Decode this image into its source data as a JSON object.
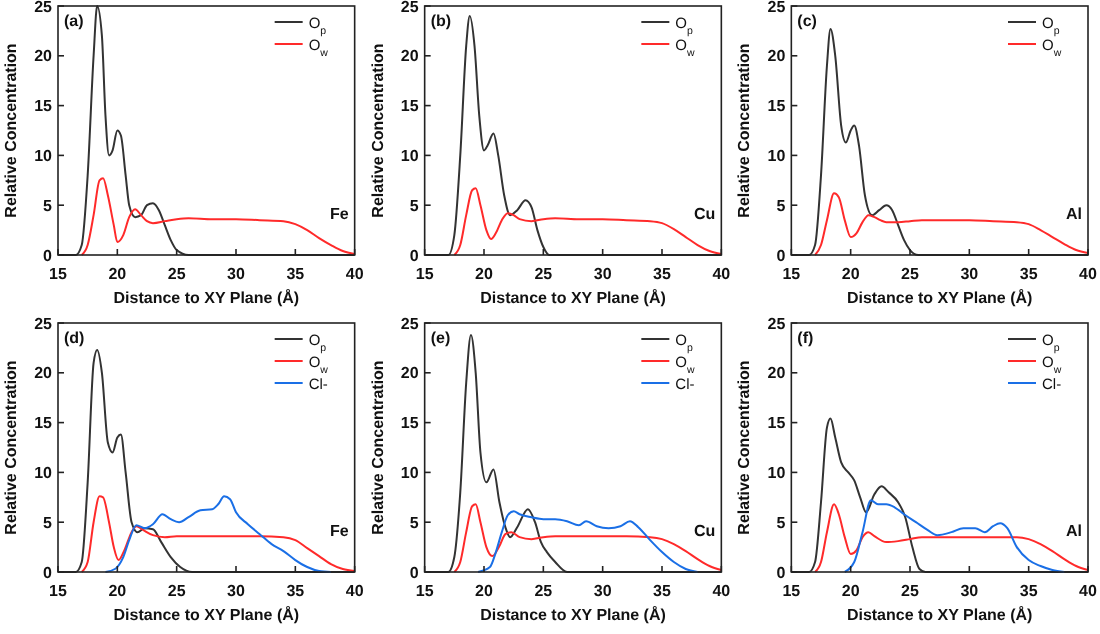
{
  "chart_data": [
    {
      "type": "line",
      "xlabel": "Distance to XY Plane (Å)",
      "ylabel": "Relative Concentration",
      "xlim": [
        15,
        40
      ],
      "ylim": [
        0,
        25
      ],
      "xticks": [
        15,
        20,
        25,
        30,
        35,
        40
      ],
      "yticks": [
        0,
        5,
        10,
        15,
        20,
        25
      ],
      "legend": "top right",
      "annotations": [
        "(a)",
        "Fe"
      ],
      "series": [
        {
          "name": "O$_{p}$",
          "color": "#333333",
          "x": [
            15,
            16.5,
            17,
            17.5,
            18,
            18.3,
            18.7,
            19,
            19.3,
            19.6,
            20,
            20.3,
            20.7,
            21,
            21.5,
            22,
            22.5,
            23,
            23.5,
            24,
            24.5,
            25,
            26,
            40
          ],
          "values": [
            0,
            0,
            1,
            8,
            20,
            25,
            22,
            14,
            10,
            10.5,
            12.5,
            12,
            8,
            5,
            3.8,
            4,
            5,
            5.2,
            4.5,
            3,
            1.5,
            0.5,
            0,
            0
          ]
        },
        {
          "name": "O$_{w}$",
          "color": "#ff2a2a",
          "x": [
            17,
            17.5,
            18,
            18.5,
            18.8,
            19.2,
            19.7,
            20,
            20.5,
            21,
            21.5,
            22,
            22.5,
            23,
            24,
            25,
            26,
            28,
            30,
            32,
            34,
            35,
            36,
            37,
            38,
            39,
            40
          ],
          "values": [
            0,
            1,
            4,
            7.5,
            7.7,
            6,
            3,
            1.3,
            2,
            3.8,
            4.6,
            4,
            3.4,
            3.2,
            3.4,
            3.6,
            3.7,
            3.6,
            3.6,
            3.5,
            3.4,
            3.1,
            2.5,
            1.7,
            1,
            0.4,
            0.1
          ]
        }
      ]
    },
    {
      "type": "line",
      "xlabel": "Distance to XY Plane (Å)",
      "ylabel": "Relative Concentration",
      "xlim": [
        15,
        40
      ],
      "ylim": [
        0,
        25
      ],
      "xticks": [
        15,
        20,
        25,
        30,
        35,
        40
      ],
      "yticks": [
        0,
        5,
        10,
        15,
        20,
        25
      ],
      "legend": "top right",
      "annotations": [
        "(b)",
        "Cu"
      ],
      "series": [
        {
          "name": "O$_{p}$",
          "color": "#333333",
          "x": [
            15,
            17,
            17.5,
            18,
            18.5,
            18.8,
            19.2,
            19.6,
            20,
            20.3,
            20.8,
            21.2,
            21.7,
            22.2,
            22.8,
            23.5,
            24,
            24.5,
            25,
            25.5,
            40
          ],
          "values": [
            0,
            0,
            2,
            10,
            21,
            24,
            21,
            14,
            10.5,
            11,
            12.2,
            10,
            6,
            4,
            4.5,
            5.5,
            4.8,
            2.5,
            0.8,
            0,
            0
          ]
        },
        {
          "name": "O$_{w}$",
          "color": "#ff2a2a",
          "x": [
            17.5,
            18,
            18.5,
            19,
            19.3,
            19.7,
            20.2,
            20.6,
            21,
            21.5,
            22,
            22.5,
            23,
            24,
            25,
            26,
            28,
            30,
            32,
            34,
            35,
            36,
            37,
            38,
            39,
            40
          ],
          "values": [
            0,
            1,
            4,
            6.5,
            6.7,
            5,
            2.5,
            1.6,
            2.2,
            3.5,
            4.2,
            4,
            3.6,
            3.4,
            3.6,
            3.7,
            3.6,
            3.6,
            3.5,
            3.4,
            3.2,
            2.6,
            1.8,
            1,
            0.4,
            0.1
          ]
        }
      ]
    },
    {
      "type": "line",
      "xlabel": "Distance to XY Plane (Å)",
      "ylabel": "Relative Concentration",
      "xlim": [
        15,
        40
      ],
      "ylim": [
        0,
        25
      ],
      "xticks": [
        15,
        20,
        25,
        30,
        35,
        40
      ],
      "yticks": [
        0,
        5,
        10,
        15,
        20,
        25
      ],
      "legend": "top right",
      "annotations": [
        "(c)",
        "Al"
      ],
      "series": [
        {
          "name": "O$_{p}$",
          "color": "#333333",
          "x": [
            15,
            16.5,
            17,
            17.5,
            18,
            18.3,
            18.7,
            19.2,
            19.6,
            20,
            20.3,
            20.7,
            21.2,
            21.8,
            22.4,
            23,
            23.5,
            24,
            24.5,
            25,
            25.7,
            40
          ],
          "values": [
            0,
            0,
            1,
            8,
            19,
            22.7,
            20,
            13,
            11.3,
            12.5,
            13,
            11,
            6,
            4,
            4.5,
            5,
            4.5,
            3,
            1.5,
            0.5,
            0,
            0
          ]
        },
        {
          "name": "O$_{w}$",
          "color": "#ff2a2a",
          "x": [
            17,
            17.5,
            18,
            18.6,
            19,
            19.5,
            20,
            20.5,
            21,
            21.5,
            22,
            22.5,
            23,
            24,
            25,
            26,
            28,
            30,
            32,
            34,
            35,
            36,
            37,
            38,
            39,
            40
          ],
          "values": [
            0,
            1,
            3.5,
            6.2,
            5.8,
            3.5,
            1.8,
            2.2,
            3.3,
            4,
            3.8,
            3.5,
            3.3,
            3.3,
            3.4,
            3.5,
            3.5,
            3.5,
            3.4,
            3.3,
            3.1,
            2.5,
            1.8,
            1.1,
            0.5,
            0.2
          ]
        }
      ]
    },
    {
      "type": "line",
      "xlabel": "Distance to XY Plane (Å)",
      "ylabel": "Relative Concentration",
      "xlim": [
        15,
        40
      ],
      "ylim": [
        0,
        25
      ],
      "xticks": [
        15,
        20,
        25,
        30,
        35,
        40
      ],
      "yticks": [
        0,
        5,
        10,
        15,
        20,
        25
      ],
      "legend": "top right",
      "annotations": [
        "(d)",
        "Fe"
      ],
      "series": [
        {
          "name": "O$_{p}$",
          "color": "#333333",
          "x": [
            15,
            16.5,
            17,
            17.5,
            18,
            18.3,
            18.7,
            19.2,
            19.6,
            20,
            20.3,
            20.7,
            21.2,
            21.7,
            22.3,
            23,
            23.7,
            24.5,
            25.3,
            26.3,
            40
          ],
          "values": [
            0,
            0,
            1,
            9,
            21,
            22.3,
            20,
            13,
            12,
            13.5,
            13.8,
            10,
            5,
            4,
            4.4,
            4.3,
            3,
            1.5,
            0.5,
            0,
            0
          ]
        },
        {
          "name": "O$_{w}$",
          "color": "#ff2a2a",
          "x": [
            17,
            17.5,
            18,
            18.5,
            18.8,
            19.3,
            19.7,
            20.1,
            20.6,
            21.2,
            21.6,
            22.2,
            23,
            24,
            25,
            26,
            28,
            30,
            32,
            34,
            35,
            36,
            37,
            38,
            39,
            40
          ],
          "values": [
            0,
            1,
            5,
            7.6,
            7.5,
            5,
            2.5,
            1.2,
            2.2,
            4,
            4.6,
            4.2,
            3.7,
            3.5,
            3.6,
            3.6,
            3.6,
            3.6,
            3.6,
            3.5,
            3.2,
            2.4,
            1.6,
            0.8,
            0.3,
            0.1
          ]
        },
        {
          "name": "Cl-",
          "color": "#1a6fe6",
          "x": [
            19,
            19.8,
            20.5,
            21,
            21.6,
            22.3,
            23,
            23.8,
            24.5,
            25.2,
            26,
            27,
            28,
            28.5,
            29,
            29.5,
            30,
            31,
            32,
            33,
            34,
            35,
            36,
            37,
            38
          ],
          "values": [
            0,
            0.3,
            1.5,
            3.2,
            4.7,
            4.4,
            4.8,
            5.8,
            5.3,
            5,
            5.5,
            6.2,
            6.3,
            6.8,
            7.6,
            7.3,
            6,
            4.8,
            3.8,
            2.8,
            2.1,
            1.2,
            0.5,
            0.1,
            0
          ]
        }
      ]
    },
    {
      "type": "line",
      "xlabel": "Distance to XY Plane (Å)",
      "ylabel": "Relative Concentration",
      "xlim": [
        15,
        40
      ],
      "ylim": [
        0,
        25
      ],
      "xticks": [
        15,
        20,
        25,
        30,
        35,
        40
      ],
      "yticks": [
        0,
        5,
        10,
        15,
        20,
        25
      ],
      "legend": "top right",
      "annotations": [
        "(e)",
        "Cu"
      ],
      "series": [
        {
          "name": "O$_{p}$",
          "color": "#333333",
          "x": [
            15,
            17,
            17.5,
            18,
            18.5,
            18.9,
            19.3,
            19.7,
            20.2,
            20.8,
            21.3,
            21.8,
            22.2,
            22.8,
            23.7,
            24.3,
            24.8,
            25.3,
            26,
            27,
            40
          ],
          "values": [
            0,
            0,
            1.5,
            8,
            19,
            23.8,
            20,
            12,
            9,
            10.3,
            7,
            4.5,
            3.5,
            4.5,
            6.3,
            5,
            3,
            2,
            1,
            0,
            0
          ]
        },
        {
          "name": "O$_{w}$",
          "color": "#ff2a2a",
          "x": [
            17.5,
            18,
            18.5,
            19,
            19.3,
            19.7,
            20.2,
            20.7,
            21.3,
            21.8,
            22.3,
            23,
            24,
            25,
            26,
            28,
            30,
            32,
            34,
            35,
            36,
            37,
            38,
            39,
            40
          ],
          "values": [
            0,
            1,
            4,
            6.6,
            6.8,
            5,
            2.5,
            1.6,
            2.6,
            3.8,
            4,
            3.5,
            3.3,
            3.5,
            3.6,
            3.6,
            3.6,
            3.6,
            3.5,
            3.3,
            2.8,
            2.1,
            1.3,
            0.6,
            0.2
          ]
        },
        {
          "name": "Cl-",
          "color": "#1a6fe6",
          "x": [
            19.5,
            20.5,
            21,
            21.5,
            22,
            22.5,
            23,
            24,
            25,
            26,
            27,
            28,
            28.6,
            29.5,
            30.5,
            31.5,
            32.3,
            33,
            34,
            35,
            36,
            37,
            38
          ],
          "values": [
            0,
            0.5,
            2,
            4,
            5.7,
            6.1,
            5.8,
            5.5,
            5.3,
            5.3,
            5.1,
            4.7,
            5.1,
            4.6,
            4.4,
            4.6,
            5.1,
            4.5,
            3.2,
            2,
            1,
            0.3,
            0
          ]
        }
      ]
    },
    {
      "type": "line",
      "xlabel": "Distance to XY Plane (Å)",
      "ylabel": "Relative Concentration",
      "xlim": [
        15,
        40
      ],
      "ylim": [
        0,
        25
      ],
      "xticks": [
        15,
        20,
        25,
        30,
        35,
        40
      ],
      "yticks": [
        0,
        5,
        10,
        15,
        20,
        25
      ],
      "legend": "top right",
      "annotations": [
        "(f)",
        "Al"
      ],
      "series": [
        {
          "name": "O$_{p}$",
          "color": "#333333",
          "x": [
            15,
            16.5,
            17,
            17.5,
            18,
            18.3,
            18.7,
            19.2,
            19.8,
            20.3,
            20.8,
            21.3,
            22,
            22.6,
            23.2,
            24,
            24.6,
            25.2,
            25.8,
            26.3,
            40
          ],
          "values": [
            0,
            0,
            1,
            7,
            14.5,
            15.4,
            13.5,
            11,
            10,
            9.2,
            7.5,
            6,
            7.8,
            8.6,
            8,
            7,
            5.5,
            2.5,
            0.3,
            0,
            0
          ]
        },
        {
          "name": "O$_{w}$",
          "color": "#ff2a2a",
          "x": [
            17,
            17.5,
            18,
            18.6,
            19,
            19.5,
            20,
            20.5,
            21,
            21.5,
            22,
            23,
            24,
            25,
            26,
            28,
            30,
            32,
            34,
            35,
            36,
            37,
            38,
            39,
            40
          ],
          "values": [
            0,
            1,
            4,
            6.8,
            5.8,
            3.5,
            1.8,
            2.2,
            3.5,
            4,
            3.6,
            3,
            3.1,
            3.3,
            3.5,
            3.5,
            3.5,
            3.5,
            3.5,
            3.3,
            2.8,
            2.1,
            1.3,
            0.6,
            0.2
          ]
        },
        {
          "name": "Cl-",
          "color": "#1a6fe6",
          "x": [
            19.5,
            20.3,
            21,
            21.7,
            22.3,
            23,
            23.7,
            24.5,
            25.5,
            26.5,
            27.3,
            28.5,
            29.5,
            30.5,
            31.3,
            32,
            32.6,
            33.2,
            34,
            35,
            36,
            37,
            38
          ],
          "values": [
            0,
            1,
            4,
            7.2,
            6.8,
            6.8,
            6.5,
            5.8,
            5,
            4.2,
            3.7,
            4,
            4.4,
            4.4,
            4,
            4.6,
            4.9,
            4.4,
            2.5,
            1.2,
            0.6,
            0.2,
            0
          ]
        }
      ]
    }
  ]
}
